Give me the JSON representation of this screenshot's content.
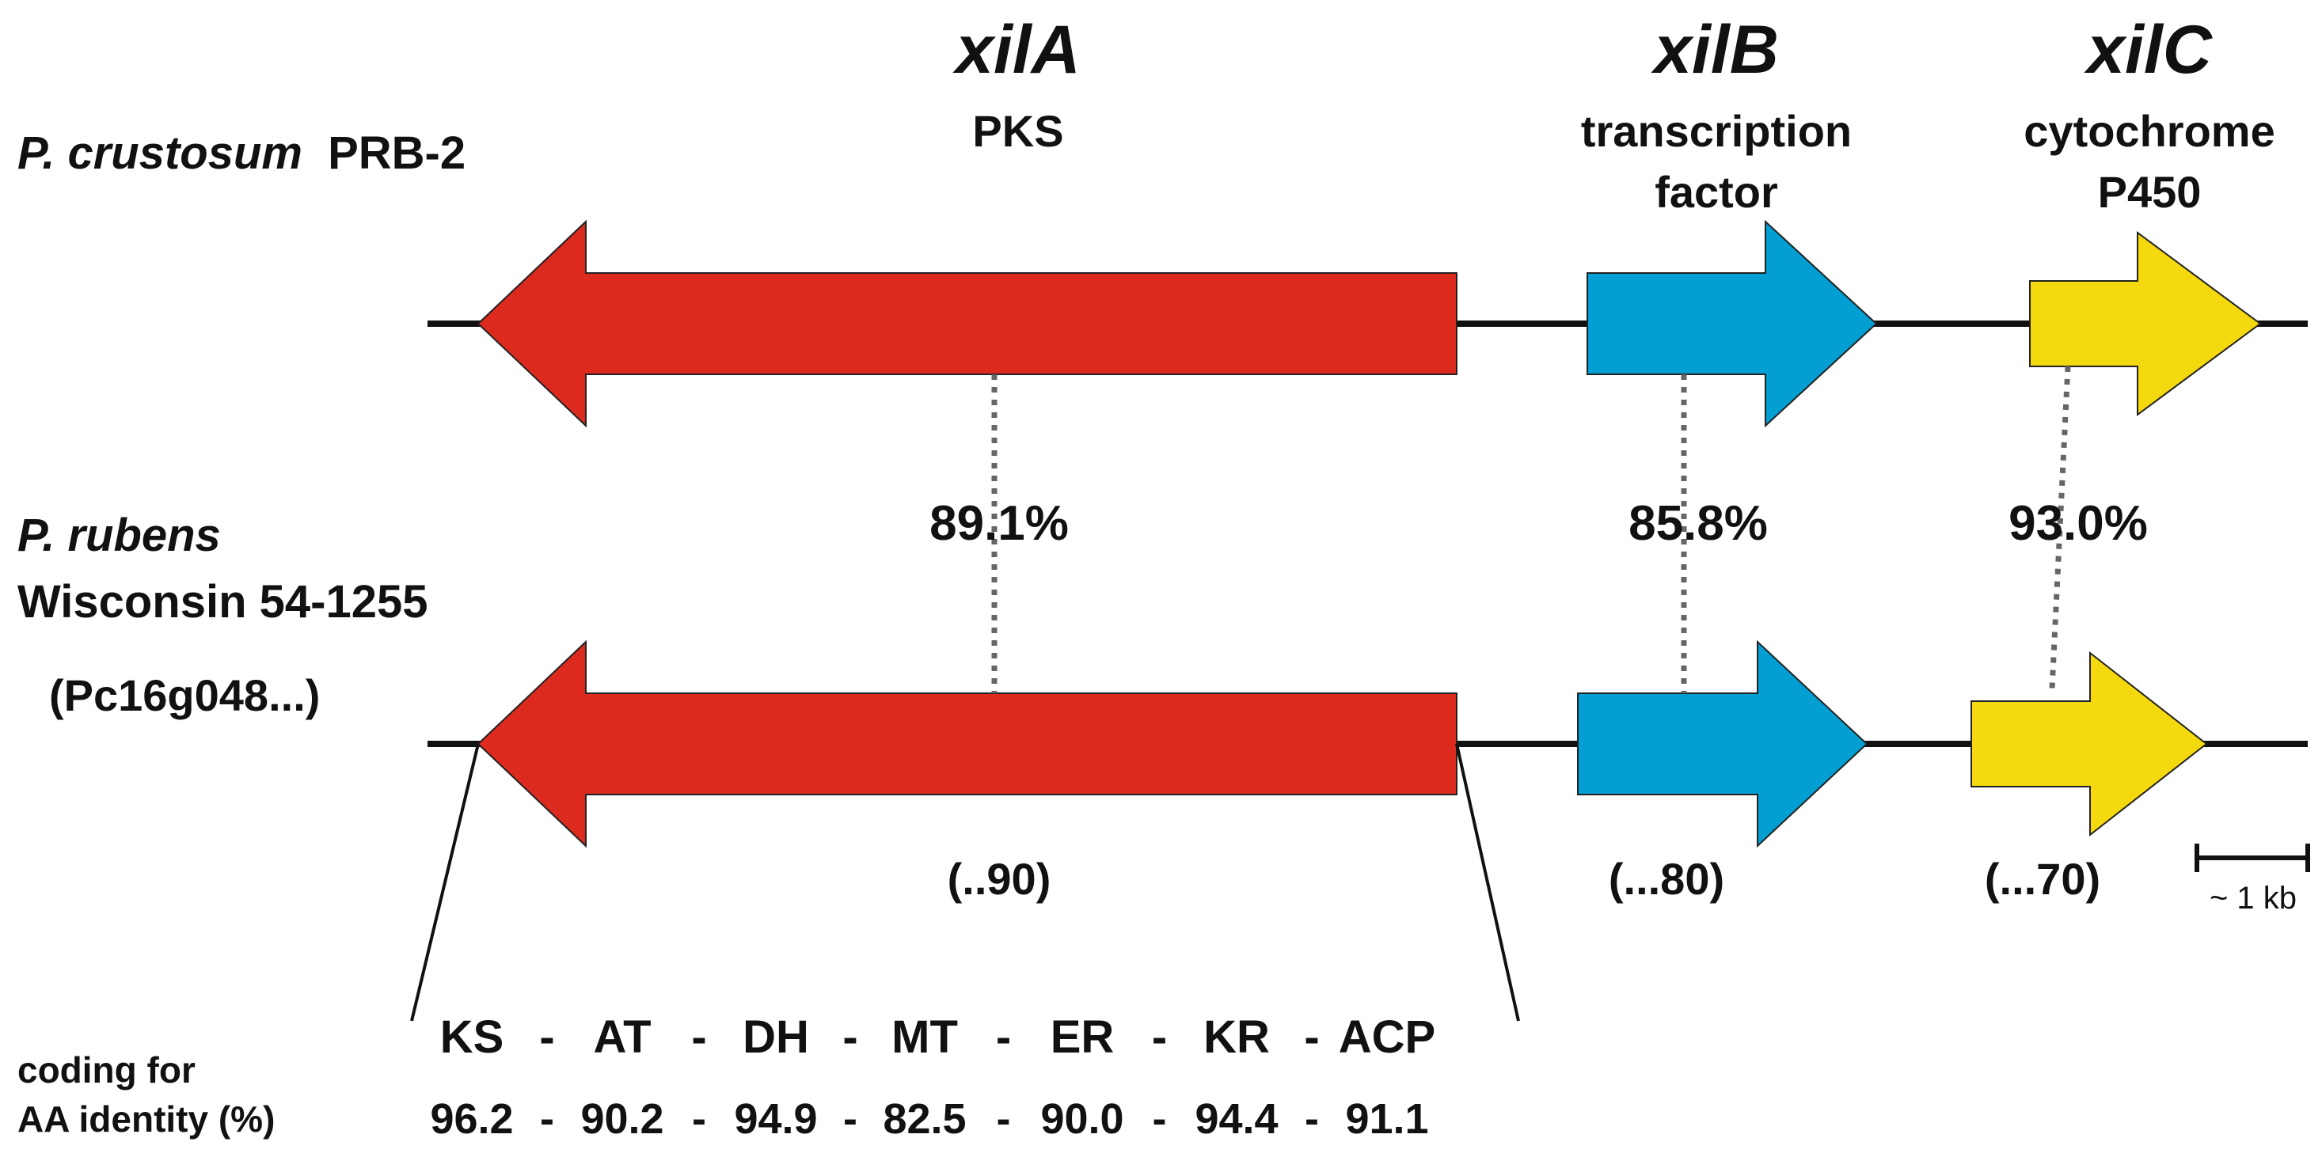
{
  "colors": {
    "pks": "#dd2a1f",
    "transcription_factor": "#039fd3",
    "cytochrome": "#f5d90f",
    "line": "#111111"
  },
  "genes": {
    "xilA": {
      "name": "xilA",
      "function": "PKS",
      "identity": "89.1%",
      "locus": "(..90)"
    },
    "xilB": {
      "name": "xilB",
      "function_line1": "transcription",
      "function_line2": "factor",
      "identity": "85.8%",
      "locus": "(...80)"
    },
    "xilC": {
      "name": "xilC",
      "function_line1": "cytochrome",
      "function_line2": "P450",
      "identity": "93.0%",
      "locus": "(...70)"
    }
  },
  "organisms": {
    "top": {
      "species": "P. crustosum",
      "strain": "PRB-2"
    },
    "bottom": {
      "species": "P. rubens",
      "strain": "Wisconsin 54-1255",
      "locus_prefix": "(Pc16g048...)"
    }
  },
  "domains": {
    "label_line1": "coding for",
    "label_line2": "AA identity (%)",
    "names": [
      "KS",
      "AT",
      "DH",
      "MT",
      "ER",
      "KR",
      "ACP"
    ],
    "identities": [
      "96.2",
      "90.2",
      "94.9",
      "82.5",
      "90.0",
      "94.4",
      "91.1"
    ],
    "separator": "-"
  },
  "scale_bar": {
    "label": "~ 1 kb"
  }
}
